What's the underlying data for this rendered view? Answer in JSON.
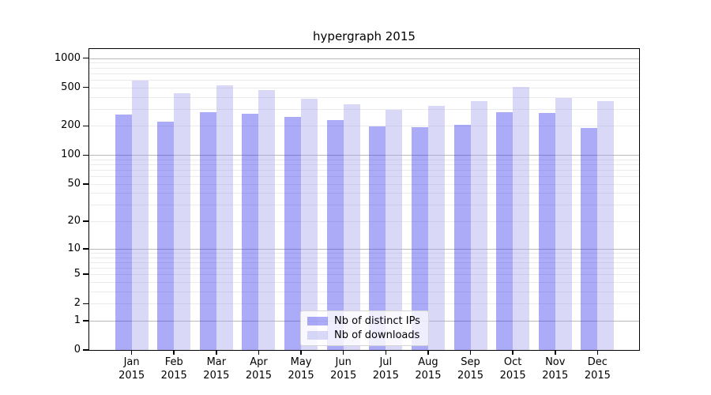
{
  "chart_data": {
    "type": "bar",
    "title": "hypergraph 2015",
    "categories": [
      "Jan 2015",
      "Feb 2015",
      "Mar 2015",
      "Apr 2015",
      "May 2015",
      "Jun 2015",
      "Jul 2015",
      "Aug 2015",
      "Sep 2015",
      "Oct 2015",
      "Nov 2015",
      "Dec 2015"
    ],
    "series": [
      {
        "name": "Nb of distinct IPs",
        "color": "rgba(45,45,235,0.4)",
        "apparent_color": "#aaaaf7",
        "values": [
          262,
          222,
          276,
          269,
          250,
          231,
          198,
          194,
          207,
          279,
          271,
          190
        ]
      },
      {
        "name": "Nb of downloads",
        "color": "rgba(160,160,235,0.4)",
        "apparent_color": "#d9d9f7",
        "values": [
          590,
          438,
          528,
          467,
          382,
          335,
          296,
          321,
          363,
          506,
          389,
          359
        ]
      }
    ],
    "y_scale": "log10(value+1)",
    "y_ticks": [
      1000,
      500,
      200,
      100,
      50,
      20,
      10,
      5,
      2,
      1,
      0
    ],
    "ylim": [
      0,
      1000
    ],
    "grid": true,
    "legend_position": "lower center",
    "xlabel": "",
    "ylabel": ""
  },
  "colors": {
    "major_gridline": "#b9b9b9",
    "minor_gridline": "#ebebeb",
    "axis": "#000000",
    "background": "#ffffff"
  }
}
